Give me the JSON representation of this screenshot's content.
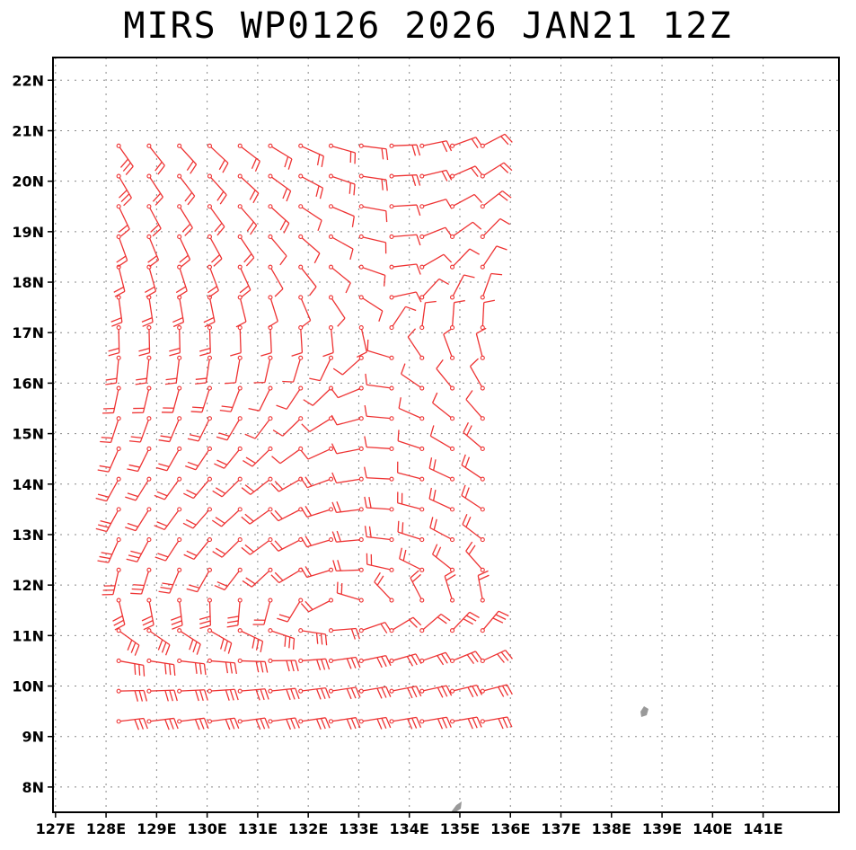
{
  "title": "MIRS WP0126 2026 JAN21 12Z",
  "x_ticks": [
    "127E",
    "128E",
    "129E",
    "130E",
    "131E",
    "132E",
    "133E",
    "134E",
    "135E",
    "136E",
    "137E",
    "138E",
    "139E",
    "140E",
    "141E"
  ],
  "y_ticks": [
    "8N",
    "9N",
    "10N",
    "11N",
    "12N",
    "13N",
    "14N",
    "15N",
    "16N",
    "17N",
    "18N",
    "19N",
    "20N",
    "21N",
    "22N"
  ],
  "colors": {
    "barb": "#ee3333",
    "land": "#999999",
    "grid": "#888888",
    "frame": "#000000"
  },
  "chart_data": {
    "type": "wind-barb-map",
    "title": "MIRS WP0126 2026 JAN21 12Z",
    "xlim": [
      126.95,
      142.5
    ],
    "ylim": [
      7.5,
      22.45
    ],
    "x_unit": "deg E",
    "y_unit": "deg N",
    "grid": true,
    "barb_field": {
      "lon_start": 128.25,
      "lon_step": 0.6,
      "lon_count": 13,
      "lat_start": 9.3,
      "lat_step": 0.6,
      "lat_count": 20,
      "circulation_center": [
        133.5,
        17.0
      ]
    }
  }
}
